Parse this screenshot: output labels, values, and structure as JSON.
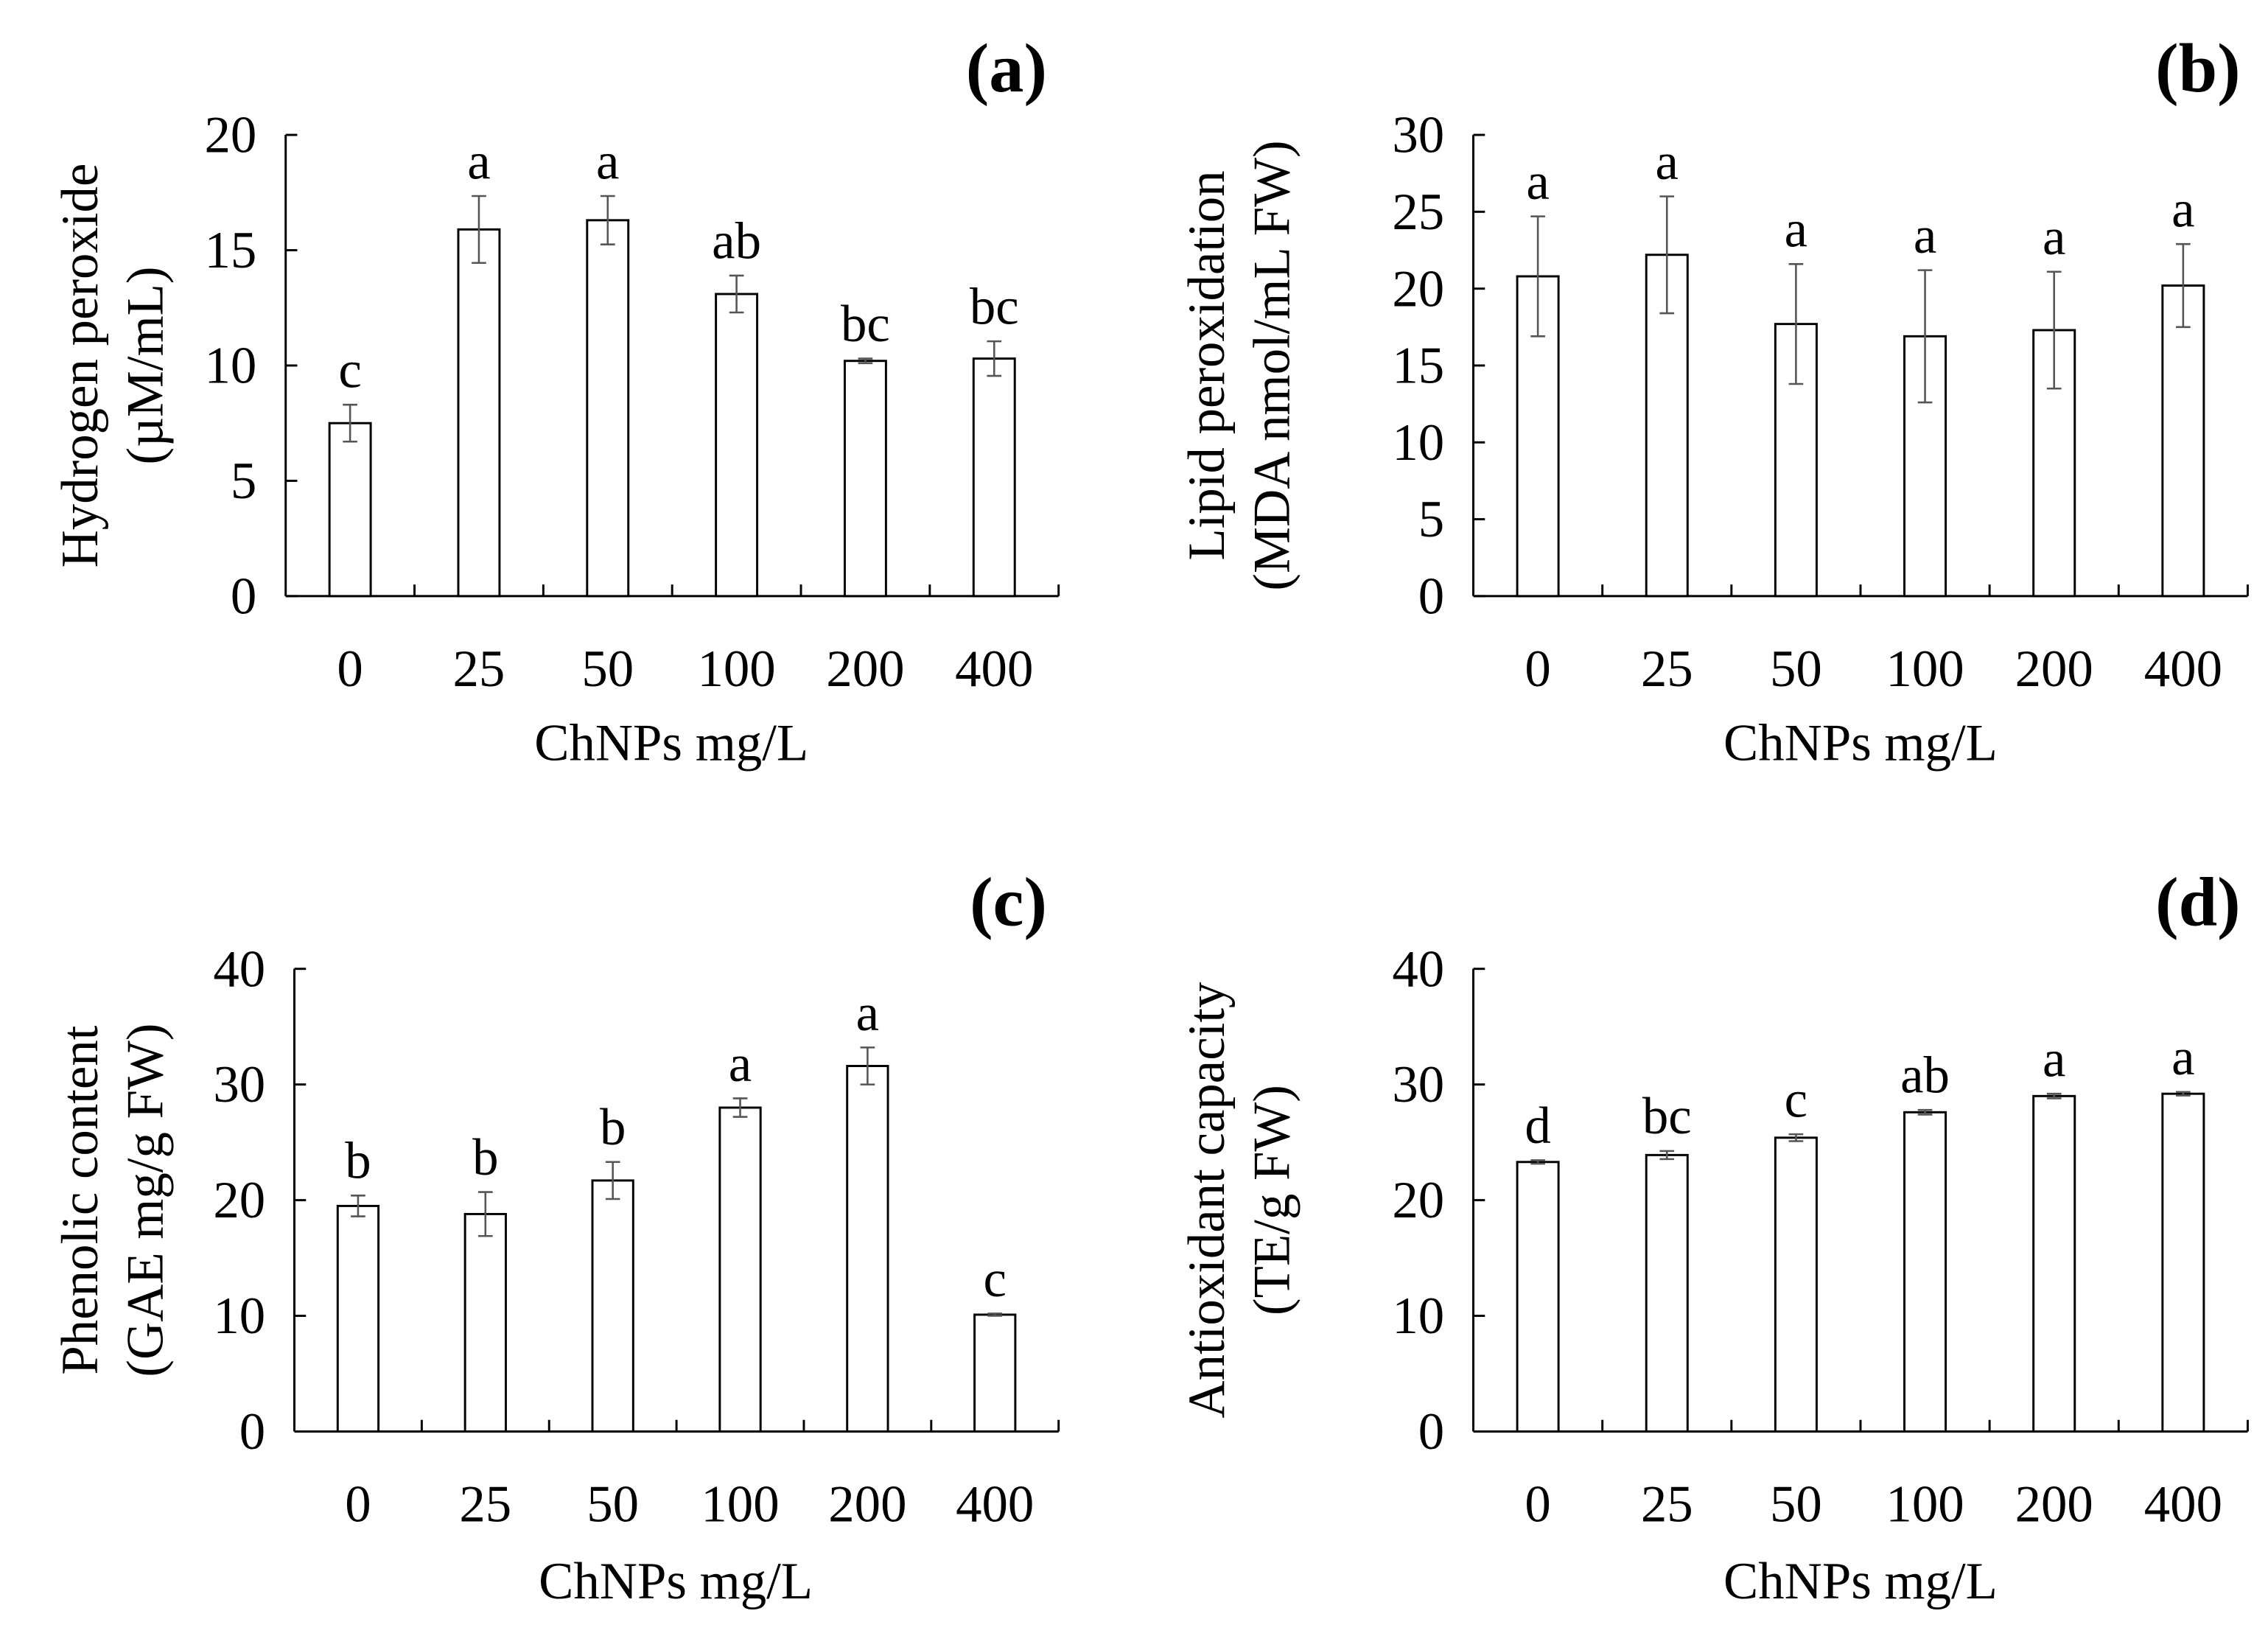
{
  "chart_data": [
    {
      "type": "bar",
      "panel_label": "(a)",
      "categories": [
        "0",
        "25",
        "50",
        "100",
        "200",
        "400"
      ],
      "values": [
        7.5,
        15.9,
        16.3,
        13.1,
        10.2,
        10.3
      ],
      "errors": [
        0.8,
        1.45,
        1.05,
        0.8,
        0.1,
        0.75
      ],
      "letters": [
        "c",
        "a",
        "a",
        "ab",
        "bc",
        "bc"
      ],
      "ylabel": [
        "Hydrogen peroxide",
        "(µM/mL)"
      ],
      "xlabel": "ChNPs mg/L",
      "ylim": [
        0,
        20
      ],
      "yticks": [
        0,
        5,
        10,
        15,
        20
      ]
    },
    {
      "type": "bar",
      "panel_label": "(b)",
      "categories": [
        "0",
        "25",
        "50",
        "100",
        "200",
        "400"
      ],
      "values": [
        20.8,
        22.2,
        17.7,
        16.9,
        17.3,
        20.2
      ],
      "errors": [
        3.9,
        3.8,
        3.9,
        4.3,
        3.8,
        2.7
      ],
      "letters": [
        "a",
        "a",
        "a",
        "a",
        "a",
        "a"
      ],
      "ylabel": [
        "Lipid peroxidation",
        "(MDA nmol/mL FW)"
      ],
      "xlabel": "ChNPs mg/L",
      "ylim": [
        0,
        30
      ],
      "yticks": [
        0,
        5,
        10,
        15,
        20,
        25,
        30
      ]
    },
    {
      "type": "bar",
      "panel_label": "(c)",
      "categories": [
        "0",
        "25",
        "50",
        "100",
        "200",
        "400"
      ],
      "values": [
        19.5,
        18.8,
        21.7,
        28.0,
        31.6,
        10.1
      ],
      "errors": [
        0.9,
        1.9,
        1.6,
        0.8,
        1.6,
        0.1
      ],
      "letters": [
        "b",
        "b",
        "b",
        "a",
        "a",
        "c"
      ],
      "ylabel": [
        "Phenolic content",
        "(GAE mg/g FW)"
      ],
      "xlabel": "ChNPs mg/L",
      "ylim": [
        0,
        40
      ],
      "yticks": [
        0,
        10,
        20,
        30,
        40
      ]
    },
    {
      "type": "bar",
      "panel_label": "(d)",
      "categories": [
        "0",
        "25",
        "50",
        "100",
        "200",
        "400"
      ],
      "values": [
        23.3,
        23.9,
        25.4,
        27.6,
        29.0,
        29.2
      ],
      "errors": [
        0.15,
        0.35,
        0.3,
        0.2,
        0.2,
        0.15
      ],
      "letters": [
        "d",
        "bc",
        "c",
        "ab",
        "a",
        "a"
      ],
      "ylabel": [
        "Antioxidant capacity",
        "(TE/g FW)"
      ],
      "xlabel": "ChNPs mg/L",
      "ylim": [
        0,
        40
      ],
      "yticks": [
        0,
        10,
        20,
        30,
        40
      ]
    }
  ],
  "colors": {
    "bar_fill": "#ffffff",
    "bar_stroke": "#000000",
    "error_bar": "#555555"
  }
}
